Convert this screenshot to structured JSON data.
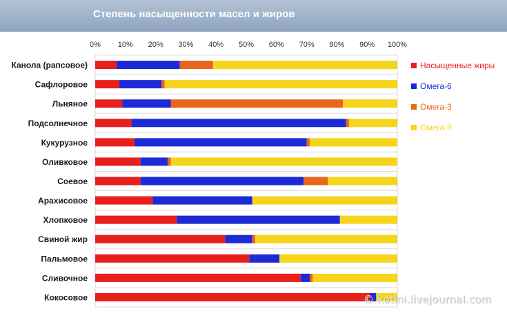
{
  "header": {
    "title": "Степень насыщенности масел и жиров"
  },
  "watermark": "© kotini.livejournal.com",
  "chart_data": {
    "type": "bar",
    "orientation": "horizontal",
    "stacked": true,
    "percent_stacked": true,
    "title": "Степень насыщенности масел и жиров",
    "xlim": [
      0,
      100
    ],
    "x_ticks": [
      "0%",
      "10%",
      "20%",
      "30%",
      "40%",
      "50%",
      "60%",
      "70%",
      "80%",
      "90%",
      "100%"
    ],
    "x_axis_position": "top",
    "grid": true,
    "legend_position": "right",
    "categories": [
      "Канола (рапсовое)",
      "Сафлоровое",
      "Льняное",
      "Подсолнечное",
      "Кукурузное",
      "Оливковое",
      "Соевое",
      "Арахисовое",
      "Хлопковое",
      "Свиной жир",
      "Пальмовое",
      "Сливочное",
      "Кокосовое"
    ],
    "series": [
      {
        "name": "Насыщенные жиры",
        "color": "#e8201c",
        "values": [
          7,
          8,
          9,
          12,
          13,
          15,
          15,
          19,
          27,
          43,
          51,
          68,
          91
        ]
      },
      {
        "name": "Омега-6",
        "color": "#1c2bd6",
        "values": [
          21,
          14,
          16,
          71,
          57,
          9,
          54,
          33,
          54,
          9,
          10,
          3,
          2
        ]
      },
      {
        "name": "Омега-3",
        "color": "#e8661c",
        "values": [
          11,
          1,
          57,
          1,
          1,
          1,
          8,
          0,
          0,
          1,
          0,
          1,
          0
        ]
      },
      {
        "name": "Омега-9",
        "color": "#f5d51c",
        "values": [
          61,
          77,
          18,
          16,
          29,
          75,
          23,
          48,
          19,
          47,
          39,
          28,
          7
        ]
      }
    ]
  }
}
